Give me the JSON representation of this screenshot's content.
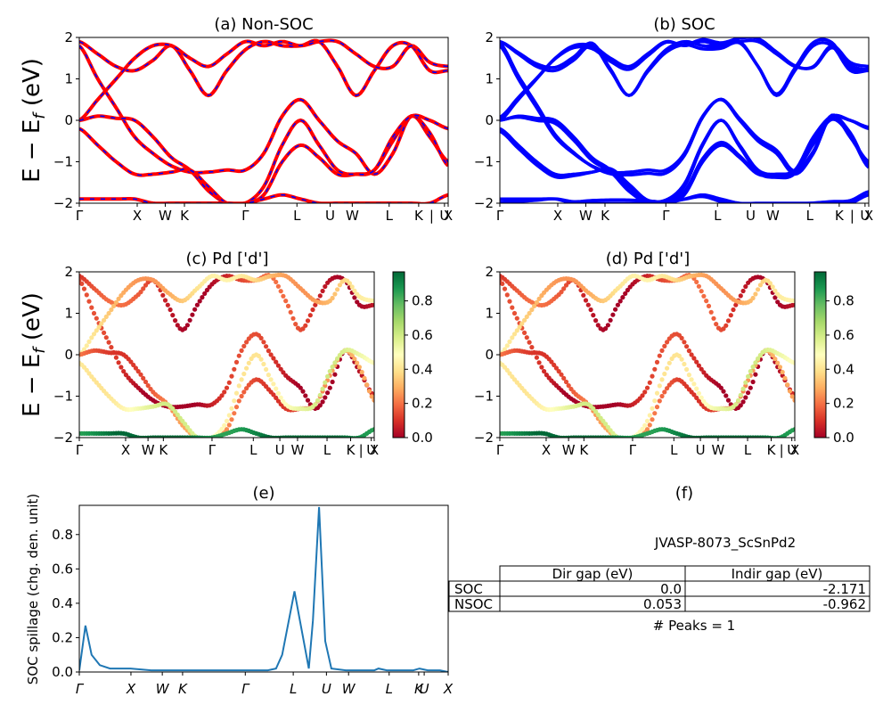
{
  "chart_data": [
    {
      "panel": "a",
      "type": "line",
      "title": "(a) Non-SOC",
      "ylabel": "E − E_f (eV)",
      "ylim": [
        -2,
        2
      ],
      "yticks": [
        "−2",
        "−1",
        "0",
        "1",
        "2"
      ],
      "xticks": [
        "Γ",
        "X",
        "W",
        "K",
        "Γ",
        "L",
        "U",
        "W",
        "L",
        "K",
        "|",
        "U",
        "X"
      ],
      "series": [
        {
          "values": [
            1.9,
            1.6,
            1.3,
            1.2,
            1.45,
            1.8,
            1.2,
            0.6,
            1.2,
            1.7,
            1.9,
            1.8,
            1.8,
            1.9,
            1.3,
            0.6,
            1.2,
            1.8,
            1.8,
            1.2,
            1.2
          ]
        },
        {
          "values": [
            1.8,
            1.0,
            0.3,
            -0.4,
            -0.8,
            -1.1,
            -1.25,
            -1.25,
            -1.2,
            -1.2,
            -0.8,
            0.1,
            0.5,
            0.0,
            -0.5,
            -0.8,
            -1.3,
            -0.8,
            0.1,
            -0.4,
            -1.0
          ]
        },
        {
          "values": [
            0.0,
            0.5,
            1.0,
            1.5,
            1.8,
            1.8,
            1.5,
            1.3,
            1.6,
            1.9,
            1.8,
            1.9,
            1.8,
            1.9,
            1.9,
            1.6,
            1.3,
            1.3,
            1.8,
            1.4,
            1.3
          ]
        },
        {
          "values": [
            0.0,
            0.1,
            0.05,
            0.0,
            -0.4,
            -0.9,
            -1.2,
            -1.7,
            -2.0,
            -2.0,
            -1.8,
            -1.0,
            -0.6,
            -0.9,
            -1.3,
            -1.3,
            -1.2,
            -0.5,
            0.1,
            -0.3,
            -1.1
          ]
        },
        {
          "values": [
            -0.2,
            -0.6,
            -1.0,
            -1.3,
            -1.3,
            -1.25,
            -1.2,
            -1.6,
            -2.0,
            -2.0,
            -1.6,
            -0.6,
            0.0,
            -0.6,
            -1.2,
            -1.3,
            -1.2,
            -0.4,
            0.1,
            0.0,
            -0.2
          ]
        },
        {
          "values": [
            -1.9,
            -1.9,
            -1.9,
            -1.9,
            -2.0,
            -2.0,
            -2.0,
            -2.0,
            -2.0,
            -2.0,
            -1.9,
            -1.8,
            -1.9,
            -2.0,
            -2.0,
            -2.0,
            -2.0,
            -2.0,
            -2.0,
            -2.0,
            -1.8
          ]
        }
      ]
    },
    {
      "panel": "b",
      "type": "line",
      "title": "(b) SOC",
      "ylim": [
        -2,
        2
      ],
      "yticks": [
        "−2",
        "−1",
        "0",
        "1",
        "2"
      ],
      "xticks": [
        "Γ",
        "X",
        "W",
        "K",
        "Γ",
        "L",
        "U",
        "W",
        "L",
        "K",
        "|",
        "U",
        "X"
      ]
    },
    {
      "panel": "c",
      "type": "scatter",
      "title": "(c)  Pd ['d']",
      "ylabel": "E − E_f (eV)",
      "ylim": [
        -2,
        2
      ],
      "yticks": [
        "−2",
        "−1",
        "0",
        "1",
        "2"
      ],
      "xticks": [
        "Γ",
        "X",
        "W",
        "K",
        "Γ",
        "L",
        "U",
        "W",
        "L",
        "K",
        "|",
        "U",
        "X"
      ],
      "weights": [
        0.1,
        0.05,
        0.35,
        0.2,
        0.5,
        0.95
      ],
      "colorbar": {
        "ticks": [
          "0.0",
          "0.2",
          "0.4",
          "0.6",
          "0.8"
        ],
        "range": [
          0,
          0.97
        ],
        "colormap": "RdYlGn"
      }
    },
    {
      "panel": "d",
      "type": "scatter",
      "title": "(d) Pd ['d']",
      "ylim": [
        -2,
        2
      ],
      "yticks": [
        "−2",
        "−1",
        "0",
        "1",
        "2"
      ],
      "xticks": [
        "Γ",
        "X",
        "W",
        "K",
        "Γ",
        "L",
        "U",
        "W",
        "L",
        "K",
        "|",
        "U",
        "X"
      ],
      "colorbar": {
        "ticks": [
          "0.0",
          "0.2",
          "0.4",
          "0.6",
          "0.8"
        ],
        "range": [
          0,
          0.97
        ],
        "colormap": "RdYlGn"
      }
    },
    {
      "panel": "e",
      "type": "line",
      "title": "(e)",
      "ylabel": "SOC spillage (chg. den. unit)",
      "ylim": [
        0,
        0.97
      ],
      "yticks": [
        "0.0",
        "0.2",
        "0.4",
        "0.6",
        "0.8"
      ],
      "xticks": [
        "Γ",
        "X",
        "W",
        "K",
        "Γ",
        "L",
        "U",
        "W",
        "L",
        "K",
        "U",
        "X"
      ],
      "x": [
        0,
        0.3,
        0.6,
        1.0,
        1.5,
        2.5,
        3.5,
        4.4,
        4.8,
        5.0,
        5.2,
        5.3,
        5.4,
        5.6,
        5.8,
        6.5,
        7.0,
        8.0,
        9.2,
        9.6,
        9.9,
        10.5,
        11.2,
        11.4,
        11.7,
        12.0,
        12.3,
        13.0,
        13.8,
        14.2,
        14.4,
        14.6,
        15.0,
        15.5,
        16.0,
        16.3,
        16.6,
        17.0,
        17.3,
        17.6,
        18.0
      ],
      "values": [
        0.01,
        0.27,
        0.1,
        0.04,
        0.02,
        0.02,
        0.01,
        0.01,
        0.01,
        0.01,
        0.01,
        0.01,
        0.01,
        0.01,
        0.01,
        0.01,
        0.01,
        0.01,
        0.01,
        0.02,
        0.1,
        0.47,
        0.02,
        0.3,
        0.96,
        0.18,
        0.02,
        0.01,
        0.01,
        0.01,
        0.01,
        0.02,
        0.01,
        0.01,
        0.01,
        0.01,
        0.02,
        0.01,
        0.01,
        0.01,
        0.0
      ]
    },
    {
      "panel": "f",
      "type": "table",
      "title": "(f)",
      "subtitle": "JVASP-8073_ScSnPd2",
      "columns": [
        "Dir gap (eV)",
        "Indir gap (eV)"
      ],
      "rows": [
        {
          "label": "SOC",
          "values": [
            "0.0",
            "-2.171"
          ]
        },
        {
          "label": "NSOC",
          "values": [
            "0.053",
            "-0.962"
          ]
        }
      ],
      "footer": "# Peaks = 1"
    }
  ],
  "colors": {
    "nonsoc_line": "#ff0000",
    "nonsoc_dash": "#0000ff",
    "soc_line": "#0000ff",
    "spillage_line": "#1f77b4"
  }
}
